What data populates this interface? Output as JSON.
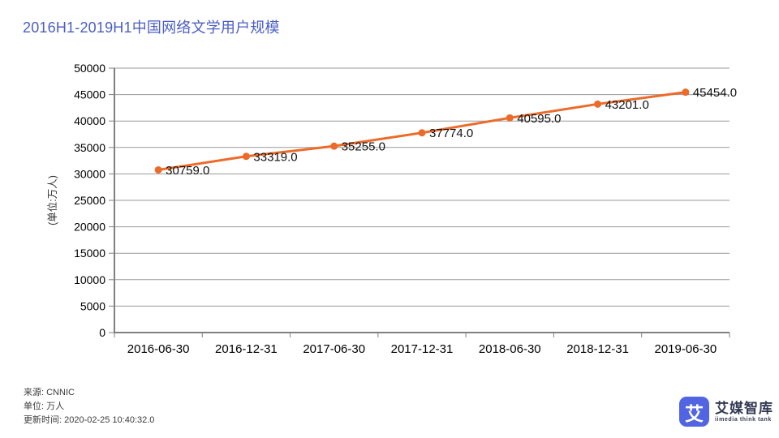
{
  "header": {
    "title": "2016H1-2019H1中国网络文学用户规模",
    "title_color": "#4a5ec4"
  },
  "chart_data": {
    "type": "line",
    "title": "2016H1-2019H1中国网络文学用户规模",
    "categories": [
      "2016-06-30",
      "2016-12-31",
      "2017-06-30",
      "2017-12-31",
      "2018-06-30",
      "2018-12-31",
      "2019-06-30"
    ],
    "values": [
      30759.0,
      33319.0,
      35255.0,
      37774.0,
      40595.0,
      43201.0,
      45454.0
    ],
    "point_labels": [
      "30759.0",
      "33319.0",
      "35255.0",
      "37774.0",
      "40595.0",
      "43201.0",
      "45454.0"
    ],
    "xlabel": "",
    "ylabel": "(单位:万人)",
    "ylim": [
      0,
      50000
    ],
    "ytick_step": 5000,
    "yticks": [
      0,
      5000,
      10000,
      15000,
      20000,
      25000,
      30000,
      35000,
      40000,
      45000,
      50000
    ],
    "grid": true,
    "legend_position": "none",
    "line_color": "#ec6b2a",
    "marker_color": "#ec6b2a",
    "grid_color": "#999999",
    "axis_color": "#808080",
    "label_color": "#111111"
  },
  "footer": {
    "source": "来源: CNNIC",
    "unit": "单位: 万人",
    "updated": "更新时间: 2020-02-25 10:40:32.0"
  },
  "logo": {
    "glyph": "艾",
    "brand": "艾媒智库",
    "tagline": "iimedia think tank",
    "icon_color": "#5164e2",
    "text_color": "#333a54"
  }
}
